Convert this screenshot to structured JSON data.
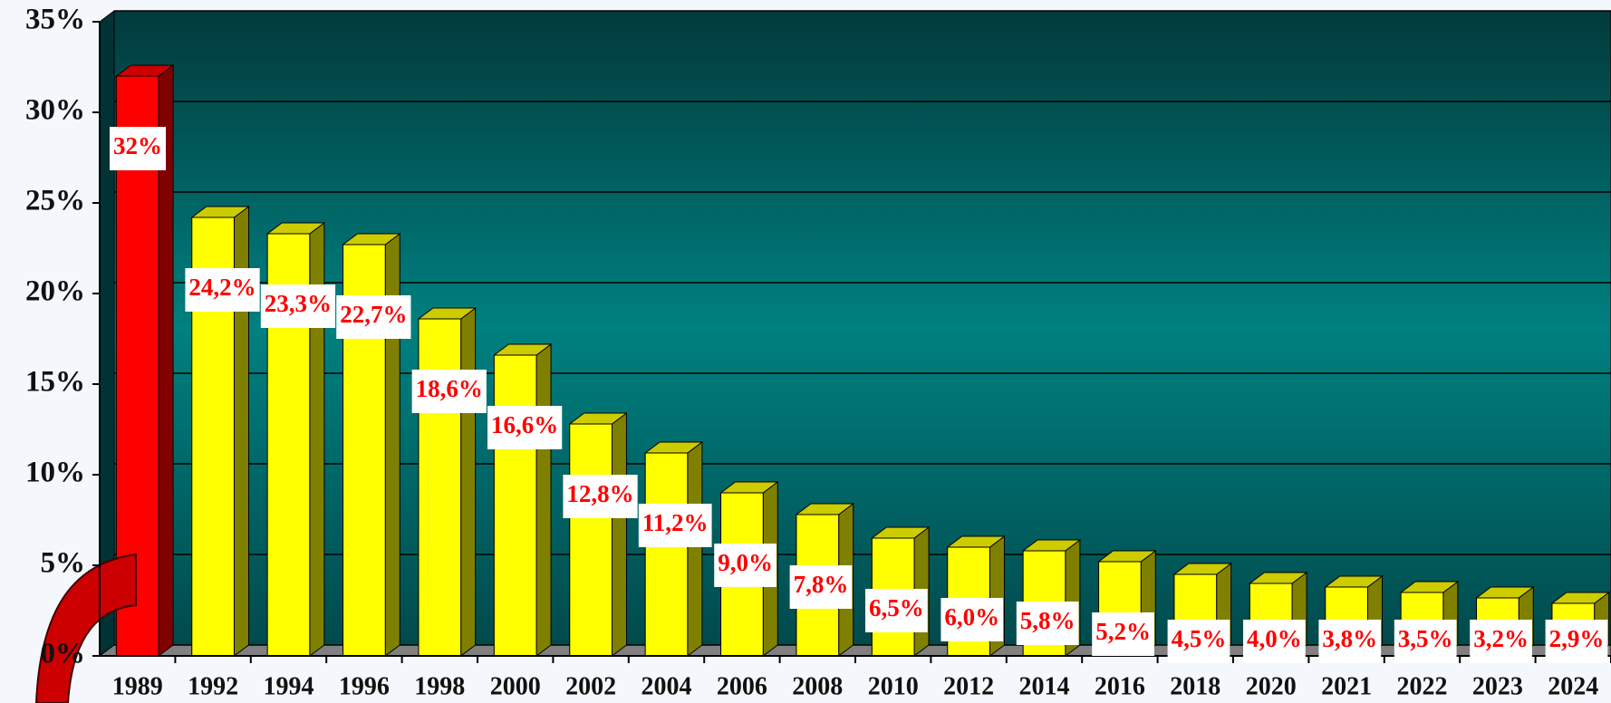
{
  "chart_data": {
    "type": "bar3d",
    "categories": [
      "1989",
      "1992",
      "1994",
      "1996",
      "1998",
      "2000",
      "2002",
      "2004",
      "2006",
      "2008",
      "2010",
      "2012",
      "2014",
      "2016",
      "2018",
      "2020",
      "2021",
      "2022",
      "2023",
      "2024"
    ],
    "values": [
      32,
      24.2,
      23.3,
      22.7,
      18.6,
      16.6,
      12.8,
      11.2,
      9.0,
      7.8,
      6.5,
      6.0,
      5.8,
      5.2,
      4.5,
      4.0,
      3.8,
      3.5,
      3.2,
      2.9
    ],
    "value_labels": [
      "32%",
      "24,2%",
      "23,3%",
      "22,7%",
      "18,6%",
      "16,6%",
      "12,8%",
      "11,2%",
      "9,0%",
      "7,8%",
      "6,5%",
      "6,0%",
      "5,8%",
      "5,2%",
      "4,5%",
      "4,0%",
      "3,8%",
      "3,5%",
      "3,2%",
      "2,9%"
    ],
    "colors": [
      "#ff0000",
      "#ffff00",
      "#ffff00",
      "#ffff00",
      "#ffff00",
      "#ffff00",
      "#ffff00",
      "#ffff00",
      "#ffff00",
      "#ffff00",
      "#ffff00",
      "#ffff00",
      "#ffff00",
      "#ffff00",
      "#ffff00",
      "#ffff00",
      "#ffff00",
      "#ffff00",
      "#ffff00",
      "#ffff00"
    ],
    "ylim": [
      0,
      35
    ],
    "yticks": [
      {
        "value": 0,
        "label": "0%"
      },
      {
        "value": 5,
        "label": "5%"
      },
      {
        "value": 10,
        "label": "10%"
      },
      {
        "value": 15,
        "label": "15%"
      },
      {
        "value": 20,
        "label": "20%"
      },
      {
        "value": 25,
        "label": "25%"
      },
      {
        "value": 30,
        "label": "30%"
      },
      {
        "value": 35,
        "label": "35%"
      }
    ],
    "grid": true
  }
}
